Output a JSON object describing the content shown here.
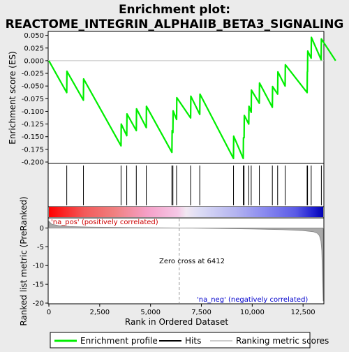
{
  "title_line1": "Enrichment plot:",
  "title_line2": "REACTOME_INTEGRIN_ALPHAIIB_BETA3_SIGNALING",
  "colors": {
    "profile": "#00ee00",
    "hits": "#000000",
    "metric": "#999999",
    "pos_label": "#cc0000",
    "neg_label": "#0000cc",
    "panel_bg": "#ffffff",
    "page_bg": "#ebebeb"
  },
  "chart_data": {
    "type": "line",
    "x_range": [
      0,
      13489
    ],
    "x_ticks": [
      0,
      2500,
      5000,
      7500,
      10000,
      12500
    ],
    "x_tick_labels": [
      "0",
      "2,500",
      "5,000",
      "7,500",
      "10,000",
      "12,500"
    ],
    "xlabel": "Rank in Ordered Dataset",
    "es_panel": {
      "ylabel": "Enrichment score (ES)",
      "ylim": [
        -0.2,
        0.055
      ],
      "y_ticks": [
        0.05,
        0.025,
        0.0,
        -0.025,
        -0.05,
        -0.075,
        -0.1,
        -0.125,
        -0.15,
        -0.175,
        -0.2
      ],
      "y_tick_labels": [
        "0.050",
        "0.025",
        "0.000",
        "-0.025",
        "-0.050",
        "-0.075",
        "-0.100",
        "-0.125",
        "-0.150",
        "-0.175",
        "-0.200"
      ],
      "series": [
        {
          "name": "Enrichment profile",
          "x": [
            0,
            880,
            890,
            1700,
            1710,
            3550,
            3560,
            3830,
            3840,
            4300,
            4310,
            4790,
            4800,
            6050,
            6060,
            6100,
            6110,
            6280,
            6290,
            6970,
            6980,
            7420,
            7430,
            9080,
            9090,
            9560,
            9570,
            9600,
            9610,
            9830,
            9840,
            9950,
            9960,
            10350,
            10360,
            10990,
            11000,
            11250,
            11260,
            11620,
            11630,
            12700,
            12710,
            12720,
            12730,
            12900,
            12910,
            13390,
            13400,
            14100
          ],
          "y": [
            0.0,
            -0.063,
            -0.021,
            -0.078,
            -0.036,
            -0.168,
            -0.125,
            -0.148,
            -0.105,
            -0.138,
            -0.095,
            -0.132,
            -0.09,
            -0.181,
            -0.138,
            -0.142,
            -0.099,
            -0.116,
            -0.073,
            -0.113,
            -0.07,
            -0.106,
            -0.066,
            -0.193,
            -0.149,
            -0.193,
            -0.152,
            -0.152,
            -0.108,
            -0.125,
            -0.09,
            -0.102,
            -0.058,
            -0.084,
            -0.044,
            -0.092,
            -0.051,
            -0.066,
            -0.022,
            -0.05,
            -0.008,
            -0.063,
            -0.022,
            -0.022,
            0.019,
            0.005,
            0.046,
            0.002,
            0.043,
            0.0
          ]
        }
      ]
    },
    "hits": [
      880,
      1700,
      3550,
      3830,
      4300,
      4790,
      6050,
      6100,
      6280,
      6970,
      7420,
      9080,
      9560,
      9600,
      9830,
      9950,
      10350,
      10990,
      11250,
      11620,
      12700,
      12720,
      12900,
      13400
    ],
    "metric_panel": {
      "ylabel": "Ranked list metric (PreRanked)",
      "ylim": [
        -20,
        2.5
      ],
      "y_ticks": [
        0,
        -5,
        -10,
        -15,
        -20
      ],
      "y_tick_labels": [
        "0",
        "-5",
        "-10",
        "-15",
        "-20"
      ],
      "series": [
        {
          "name": "Ranking metric scores",
          "x": [
            0,
            150,
            500,
            1000,
            2000,
            4000,
            6412,
            8000,
            10000,
            11500,
            12500,
            13000,
            13200,
            13300,
            13380,
            13420,
            13450,
            13489
          ],
          "y": [
            1.8,
            1.0,
            0.6,
            0.4,
            0.25,
            0.1,
            0.0,
            -0.1,
            -0.25,
            -0.45,
            -0.7,
            -1.0,
            -1.4,
            -2.0,
            -3.5,
            -6.0,
            -12.0,
            -19.5
          ]
        }
      ],
      "zero_cross_label": "Zero cross at 6412",
      "zero_cross_x": 6412,
      "pos_label": "'na_pos' (positively correlated)",
      "neg_label": "'na_neg' (negatively correlated)"
    },
    "legend": {
      "placement": "bottom",
      "entries": [
        {
          "label": "Enrichment profile",
          "color": "#00ee00"
        },
        {
          "label": "Hits",
          "color": "#000000"
        },
        {
          "label": "Ranking metric scores",
          "color": "#999999"
        }
      ]
    }
  }
}
